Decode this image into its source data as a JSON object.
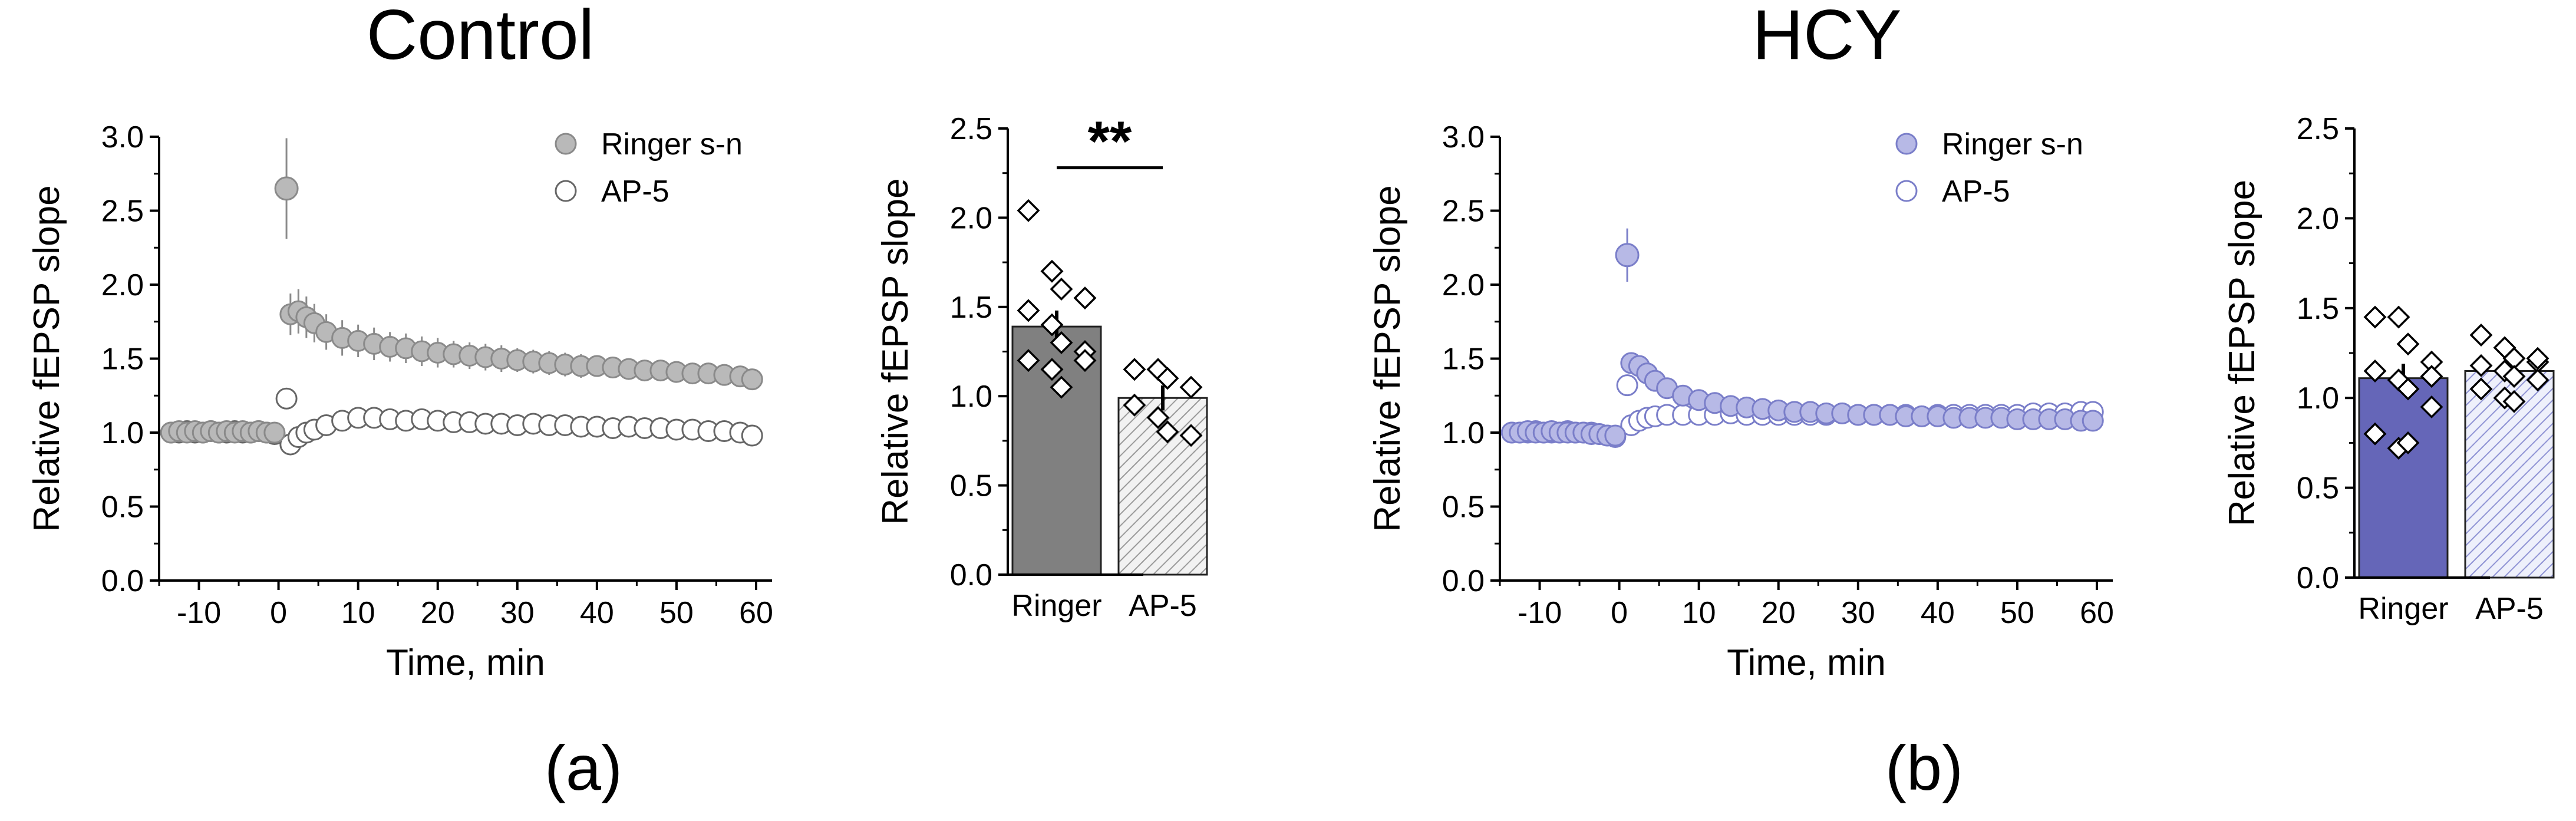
{
  "panels": [
    {
      "title": "Control",
      "letter": "(a)"
    },
    {
      "title": "HCY",
      "letter": "(b)"
    }
  ],
  "colors": {
    "control_fill": "#b9b9b9",
    "control_edge": "#8a8a8a",
    "control_bar": "#808080",
    "control_bar_ap5": "#d8d8d8",
    "hcy_fill": "#b7b9e6",
    "hcy_edge": "#7a7ec9",
    "hcy_bar": "#6566b8",
    "hcy_bar_ap5": "#cfd1ef",
    "open_fill": "#ffffff",
    "axis": "#000000"
  },
  "chart_data": [
    {
      "type": "scatter",
      "panel": "Control",
      "xlabel": "Time, min",
      "ylabel": "Relative fEPSP slope",
      "xlim": [
        -15,
        62
      ],
      "ylim": [
        0,
        3
      ],
      "xticks": [
        -10,
        0,
        10,
        20,
        30,
        40,
        50,
        60
      ],
      "yticks": [
        0.0,
        0.5,
        1.0,
        1.5,
        2.0,
        2.5,
        3.0
      ],
      "xtick_labels": [
        "-10",
        "0",
        "10",
        "20",
        "30",
        "40",
        "50",
        "60"
      ],
      "ytick_labels": [
        "0.0",
        "0.5",
        "1.0",
        "1.5",
        "2.0",
        "2.5",
        "3.0"
      ],
      "legend": "top-right",
      "series": [
        {
          "name": "Ringer s-n",
          "marker": "filled",
          "x": [
            -13.5,
            -12.5,
            -11.5,
            -10.5,
            -9.5,
            -8.5,
            -7.5,
            -6.5,
            -5.5,
            -4.5,
            -3.5,
            -2.5,
            -1.5,
            -0.5,
            1,
            1.5,
            2.5,
            3.5,
            4.5,
            6,
            8,
            10,
            12,
            14,
            16,
            18,
            20,
            22,
            24,
            26,
            28,
            30,
            32,
            34,
            36,
            38,
            40,
            42,
            44,
            46,
            48,
            50,
            52,
            54,
            56,
            58,
            59.5
          ],
          "y": [
            1.0,
            1.01,
            1.0,
            1.01,
            1.0,
            1.01,
            1.0,
            1.01,
            1.0,
            1.01,
            1.0,
            1.01,
            1.0,
            1.0,
            2.65,
            1.8,
            1.82,
            1.78,
            1.74,
            1.68,
            1.64,
            1.62,
            1.6,
            1.58,
            1.57,
            1.55,
            1.54,
            1.53,
            1.52,
            1.51,
            1.5,
            1.49,
            1.48,
            1.47,
            1.46,
            1.45,
            1.45,
            1.44,
            1.43,
            1.42,
            1.42,
            1.41,
            1.4,
            1.4,
            1.39,
            1.38,
            1.36
          ],
          "err": [
            0.05,
            0.05,
            0.05,
            0.05,
            0.05,
            0.05,
            0.05,
            0.05,
            0.05,
            0.05,
            0.05,
            0.05,
            0.05,
            0.05,
            0.34,
            0.14,
            0.15,
            0.14,
            0.13,
            0.12,
            0.12,
            0.11,
            0.11,
            0.1,
            0.1,
            0.1,
            0.1,
            0.09,
            0.09,
            0.09,
            0.09,
            0.08,
            0.08,
            0.08,
            0.08,
            0.08,
            0.07,
            0.07,
            0.07,
            0.07,
            0.07,
            0.07,
            0.06,
            0.06,
            0.06,
            0.06,
            0.06
          ]
        },
        {
          "name": "AP-5",
          "marker": "open",
          "x": [
            -13.5,
            -12.5,
            -11.5,
            -10.5,
            -9.5,
            -8.5,
            -7.5,
            -6.5,
            -5.5,
            -4.5,
            -3.5,
            -2.5,
            -1.5,
            -0.5,
            1,
            1.5,
            2.5,
            3.5,
            4.5,
            6,
            8,
            10,
            12,
            14,
            16,
            18,
            20,
            22,
            24,
            26,
            28,
            30,
            32,
            34,
            36,
            38,
            40,
            42,
            44,
            46,
            48,
            50,
            52,
            54,
            56,
            58,
            59.5
          ],
          "y": [
            1.0,
            1.0,
            1.01,
            1.0,
            1.0,
            1.01,
            1.0,
            1.0,
            1.01,
            1.0,
            1.0,
            1.01,
            1.0,
            0.99,
            1.23,
            0.92,
            0.97,
            1.0,
            1.02,
            1.05,
            1.08,
            1.1,
            1.1,
            1.09,
            1.08,
            1.09,
            1.08,
            1.07,
            1.07,
            1.06,
            1.06,
            1.05,
            1.06,
            1.05,
            1.05,
            1.04,
            1.04,
            1.03,
            1.04,
            1.03,
            1.03,
            1.02,
            1.02,
            1.01,
            1.01,
            1.0,
            0.98
          ],
          "err": [
            0.04,
            0.04,
            0.04,
            0.04,
            0.04,
            0.04,
            0.04,
            0.04,
            0.04,
            0.04,
            0.04,
            0.04,
            0.04,
            0.04,
            0.0,
            0.05,
            0.06,
            0.06,
            0.07,
            0.07,
            0.07,
            0.07,
            0.07,
            0.07,
            0.07,
            0.07,
            0.06,
            0.06,
            0.06,
            0.06,
            0.06,
            0.06,
            0.06,
            0.05,
            0.05,
            0.05,
            0.05,
            0.05,
            0.05,
            0.05,
            0.05,
            0.04,
            0.04,
            0.04,
            0.04,
            0.04,
            0.04
          ]
        }
      ]
    },
    {
      "type": "bar",
      "panel": "Control",
      "ylabel": "Relative fEPSP slope",
      "categories": [
        "Ringer",
        "AP-5"
      ],
      "values": [
        1.39,
        0.99
      ],
      "err": [
        0.09,
        0.07
      ],
      "ylim": [
        0,
        2.5
      ],
      "yticks": [
        0.0,
        0.5,
        1.0,
        1.5,
        2.0,
        2.5
      ],
      "ytick_labels": [
        "0.0",
        "0.5",
        "1.0",
        "1.5",
        "2.0",
        "2.5"
      ],
      "significance": "**",
      "points": [
        [
          2.04,
          1.7,
          1.6,
          1.55,
          1.48,
          1.4,
          1.3,
          1.25,
          1.2,
          1.15,
          1.05,
          1.2
        ],
        [
          1.15,
          1.15,
          1.1,
          1.05,
          0.95,
          0.88,
          0.8,
          0.78
        ]
      ]
    },
    {
      "type": "scatter",
      "panel": "HCY",
      "xlabel": "Time, min",
      "ylabel": "Relative fEPSP slope",
      "xlim": [
        -15,
        62
      ],
      "ylim": [
        0,
        3
      ],
      "xticks": [
        -10,
        0,
        10,
        20,
        30,
        40,
        50,
        60
      ],
      "yticks": [
        0.0,
        0.5,
        1.0,
        1.5,
        2.0,
        2.5,
        3.0
      ],
      "xtick_labels": [
        "-10",
        "0",
        "10",
        "20",
        "30",
        "40",
        "50",
        "60"
      ],
      "ytick_labels": [
        "0.0",
        "0.5",
        "1.0",
        "1.5",
        "2.0",
        "2.5",
        "3.0"
      ],
      "legend": "top-right",
      "series": [
        {
          "name": "Ringer s-n",
          "marker": "filled",
          "x": [
            -13.5,
            -12.5,
            -11.5,
            -10.5,
            -9.5,
            -8.5,
            -7.5,
            -6.5,
            -5.5,
            -4.5,
            -3.5,
            -2.5,
            -1.5,
            -0.5,
            1,
            1.5,
            2.5,
            3.5,
            4.5,
            6,
            8,
            10,
            12,
            14,
            16,
            18,
            20,
            22,
            24,
            26,
            28,
            30,
            32,
            34,
            36,
            38,
            40,
            42,
            44,
            46,
            48,
            50,
            52,
            54,
            56,
            58,
            59.5
          ],
          "y": [
            1.0,
            1.0,
            1.01,
            1.0,
            1.0,
            1.01,
            1.0,
            1.0,
            1.0,
            1.0,
            0.99,
            0.99,
            0.98,
            0.98,
            2.2,
            1.47,
            1.45,
            1.4,
            1.35,
            1.3,
            1.25,
            1.22,
            1.2,
            1.18,
            1.17,
            1.16,
            1.15,
            1.14,
            1.14,
            1.13,
            1.13,
            1.12,
            1.12,
            1.12,
            1.11,
            1.11,
            1.11,
            1.1,
            1.1,
            1.1,
            1.1,
            1.09,
            1.09,
            1.09,
            1.09,
            1.08,
            1.08
          ],
          "err": [
            0.03,
            0.03,
            0.03,
            0.03,
            0.03,
            0.03,
            0.03,
            0.03,
            0.03,
            0.03,
            0.03,
            0.03,
            0.03,
            0.03,
            0.18,
            0.05,
            0.05,
            0.05,
            0.05,
            0.04,
            0.04,
            0.04,
            0.04,
            0.04,
            0.04,
            0.04,
            0.03,
            0.03,
            0.03,
            0.03,
            0.03,
            0.03,
            0.03,
            0.03,
            0.03,
            0.03,
            0.03,
            0.03,
            0.03,
            0.03,
            0.03,
            0.03,
            0.03,
            0.03,
            0.03,
            0.03,
            0.03
          ]
        },
        {
          "name": "AP-5",
          "marker": "open",
          "x": [
            -13.5,
            -12.5,
            -11.5,
            -10.5,
            -9.5,
            -8.5,
            -7.5,
            -6.5,
            -5.5,
            -4.5,
            -3.5,
            -2.5,
            -1.5,
            -0.5,
            1,
            1.5,
            2.5,
            3.5,
            4.5,
            6,
            8,
            10,
            12,
            14,
            16,
            18,
            20,
            22,
            24,
            26,
            28,
            30,
            32,
            34,
            36,
            38,
            40,
            42,
            44,
            46,
            48,
            50,
            52,
            54,
            56,
            58,
            59.5
          ],
          "y": [
            1.0,
            1.0,
            1.0,
            1.01,
            1.0,
            1.0,
            1.0,
            1.01,
            1.0,
            1.0,
            1.0,
            0.99,
            0.98,
            0.97,
            1.32,
            1.05,
            1.08,
            1.1,
            1.11,
            1.12,
            1.12,
            1.12,
            1.12,
            1.13,
            1.12,
            1.12,
            1.12,
            1.12,
            1.12,
            1.12,
            1.13,
            1.12,
            1.12,
            1.12,
            1.12,
            1.11,
            1.12,
            1.12,
            1.12,
            1.12,
            1.12,
            1.12,
            1.13,
            1.13,
            1.13,
            1.14,
            1.14
          ],
          "err": [
            0.02,
            0.02,
            0.02,
            0.02,
            0.02,
            0.02,
            0.02,
            0.02,
            0.02,
            0.02,
            0.02,
            0.02,
            0.02,
            0.02,
            0.0,
            0.03,
            0.03,
            0.03,
            0.03,
            0.03,
            0.03,
            0.03,
            0.03,
            0.03,
            0.03,
            0.03,
            0.03,
            0.03,
            0.03,
            0.03,
            0.03,
            0.03,
            0.03,
            0.03,
            0.03,
            0.03,
            0.03,
            0.03,
            0.03,
            0.03,
            0.03,
            0.03,
            0.03,
            0.03,
            0.03,
            0.03,
            0.03
          ]
        }
      ]
    },
    {
      "type": "bar",
      "panel": "HCY",
      "ylabel": "Relative fEPSP slope",
      "categories": [
        "Ringer",
        "AP-5"
      ],
      "values": [
        1.11,
        1.15
      ],
      "err": [
        0.08,
        0.05
      ],
      "ylim": [
        0,
        2.5
      ],
      "yticks": [
        0.0,
        0.5,
        1.0,
        1.5,
        2.0,
        2.5
      ],
      "ytick_labels": [
        "0.0",
        "0.5",
        "1.0",
        "1.5",
        "2.0",
        "2.5"
      ],
      "significance": "",
      "points": [
        [
          1.45,
          1.45,
          1.3,
          1.2,
          1.15,
          1.1,
          1.05,
          0.95,
          0.8,
          0.72,
          0.75,
          1.12
        ],
        [
          1.35,
          1.28,
          1.22,
          1.2,
          1.18,
          1.15,
          1.12,
          1.1,
          1.05,
          1.0,
          0.98,
          1.22
        ]
      ]
    }
  ]
}
